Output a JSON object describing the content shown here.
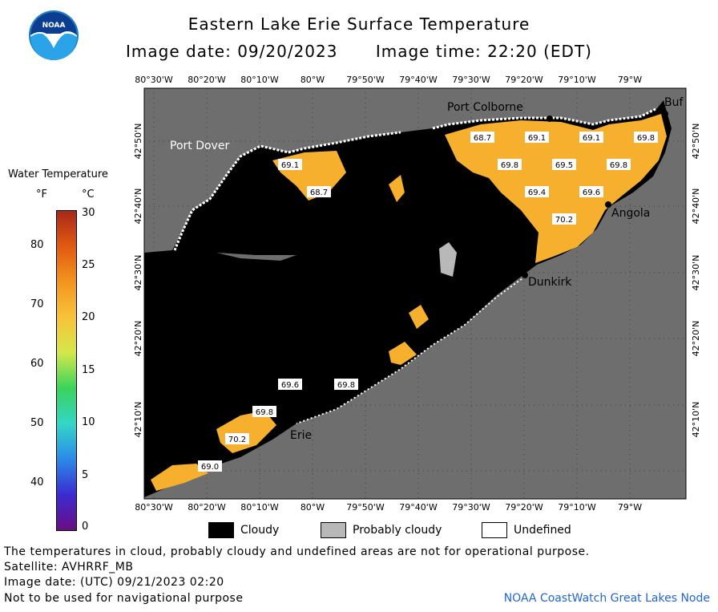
{
  "header": {
    "title": "Eastern Lake Erie Surface Temperature",
    "image_date": "Image date: 09/20/2023",
    "image_time": "Image time: 22:20 (EDT)",
    "logo_text": "NOAA"
  },
  "axes": {
    "top_lon": [
      "80°30'W",
      "80°20'W",
      "80°10'W",
      "80°W",
      "79°50'W",
      "79°40'W",
      "79°30'W",
      "79°20'W",
      "79°10'W",
      "79°W"
    ],
    "bottom_lon": [
      "80°30'W",
      "80°20'W",
      "80°10'W",
      "80°W",
      "79°50'W",
      "79°40'W",
      "79°30'W",
      "79°20'W",
      "79°10'W",
      "79°W"
    ],
    "left_lat": [
      "42°50'N",
      "42°40'N",
      "42°30'N",
      "42°20'N",
      "42°10'N"
    ],
    "right_lat": [
      "42°50'N",
      "42°40'N",
      "42°30'N",
      "42°20'N",
      "42°10'N"
    ]
  },
  "cities": {
    "port_colborne": "Port Colborne",
    "port_dover": "Port Dover",
    "buffalo": "Buf",
    "angola": "Angola",
    "dunkirk": "Dunkirk",
    "erie": "Erie"
  },
  "temperatures": [
    "68.7",
    "69.1",
    "69.1",
    "69.8",
    "69.1",
    "69.8",
    "69.5",
    "69.8",
    "68.7",
    "69.4",
    "69.6",
    "70.2",
    "69.6",
    "69.8",
    "69.8",
    "70.2",
    "69.0"
  ],
  "legend": {
    "title": "Water Temperature",
    "unit_f": "°F",
    "unit_c": "°C",
    "f_ticks": [
      "80",
      "70",
      "60",
      "50",
      "40"
    ],
    "c_ticks": [
      "30",
      "25",
      "20",
      "15",
      "10",
      "5",
      "0"
    ],
    "colors": [
      "#6a0d83",
      "#3b2bd1",
      "#2a8ae8",
      "#33d6c8",
      "#3ad35b",
      "#d4e84a",
      "#f8c23a",
      "#f3951f",
      "#e05a10",
      "#a8281a"
    ]
  },
  "key": {
    "cloudy": "Cloudy",
    "probably_cloudy": "Probably cloudy",
    "undefined": "Undefined"
  },
  "footer": {
    "note": "The temperatures in cloud, probably cloudy and undefined areas are not for operational purpose.",
    "satellite": "Satellite: AVHRRF_MB",
    "utc": "Image date: (UTC) 09/21/2023  02:20",
    "nav": "Not to be used for navigational purpose",
    "node": "NOAA CoastWatch Great Lakes Node"
  },
  "colors": {
    "land": "#6e6e6e",
    "cloud": "#000000",
    "water": "#f7b02d",
    "probably_cloudy": "#b8b8b8",
    "undefined": "#ffffff"
  }
}
